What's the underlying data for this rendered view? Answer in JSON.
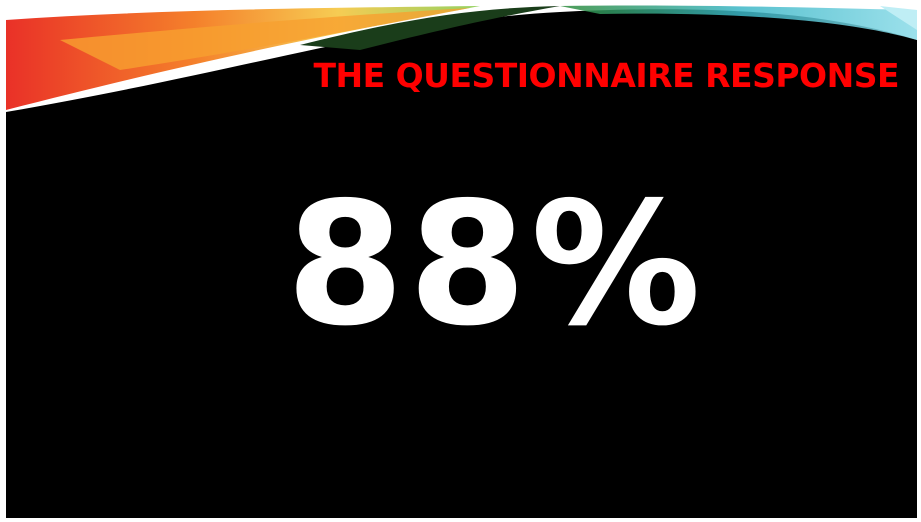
{
  "slide": {
    "title": "THE QUESTIONNAIRE RESPONSE",
    "headline": "88%"
  }
}
